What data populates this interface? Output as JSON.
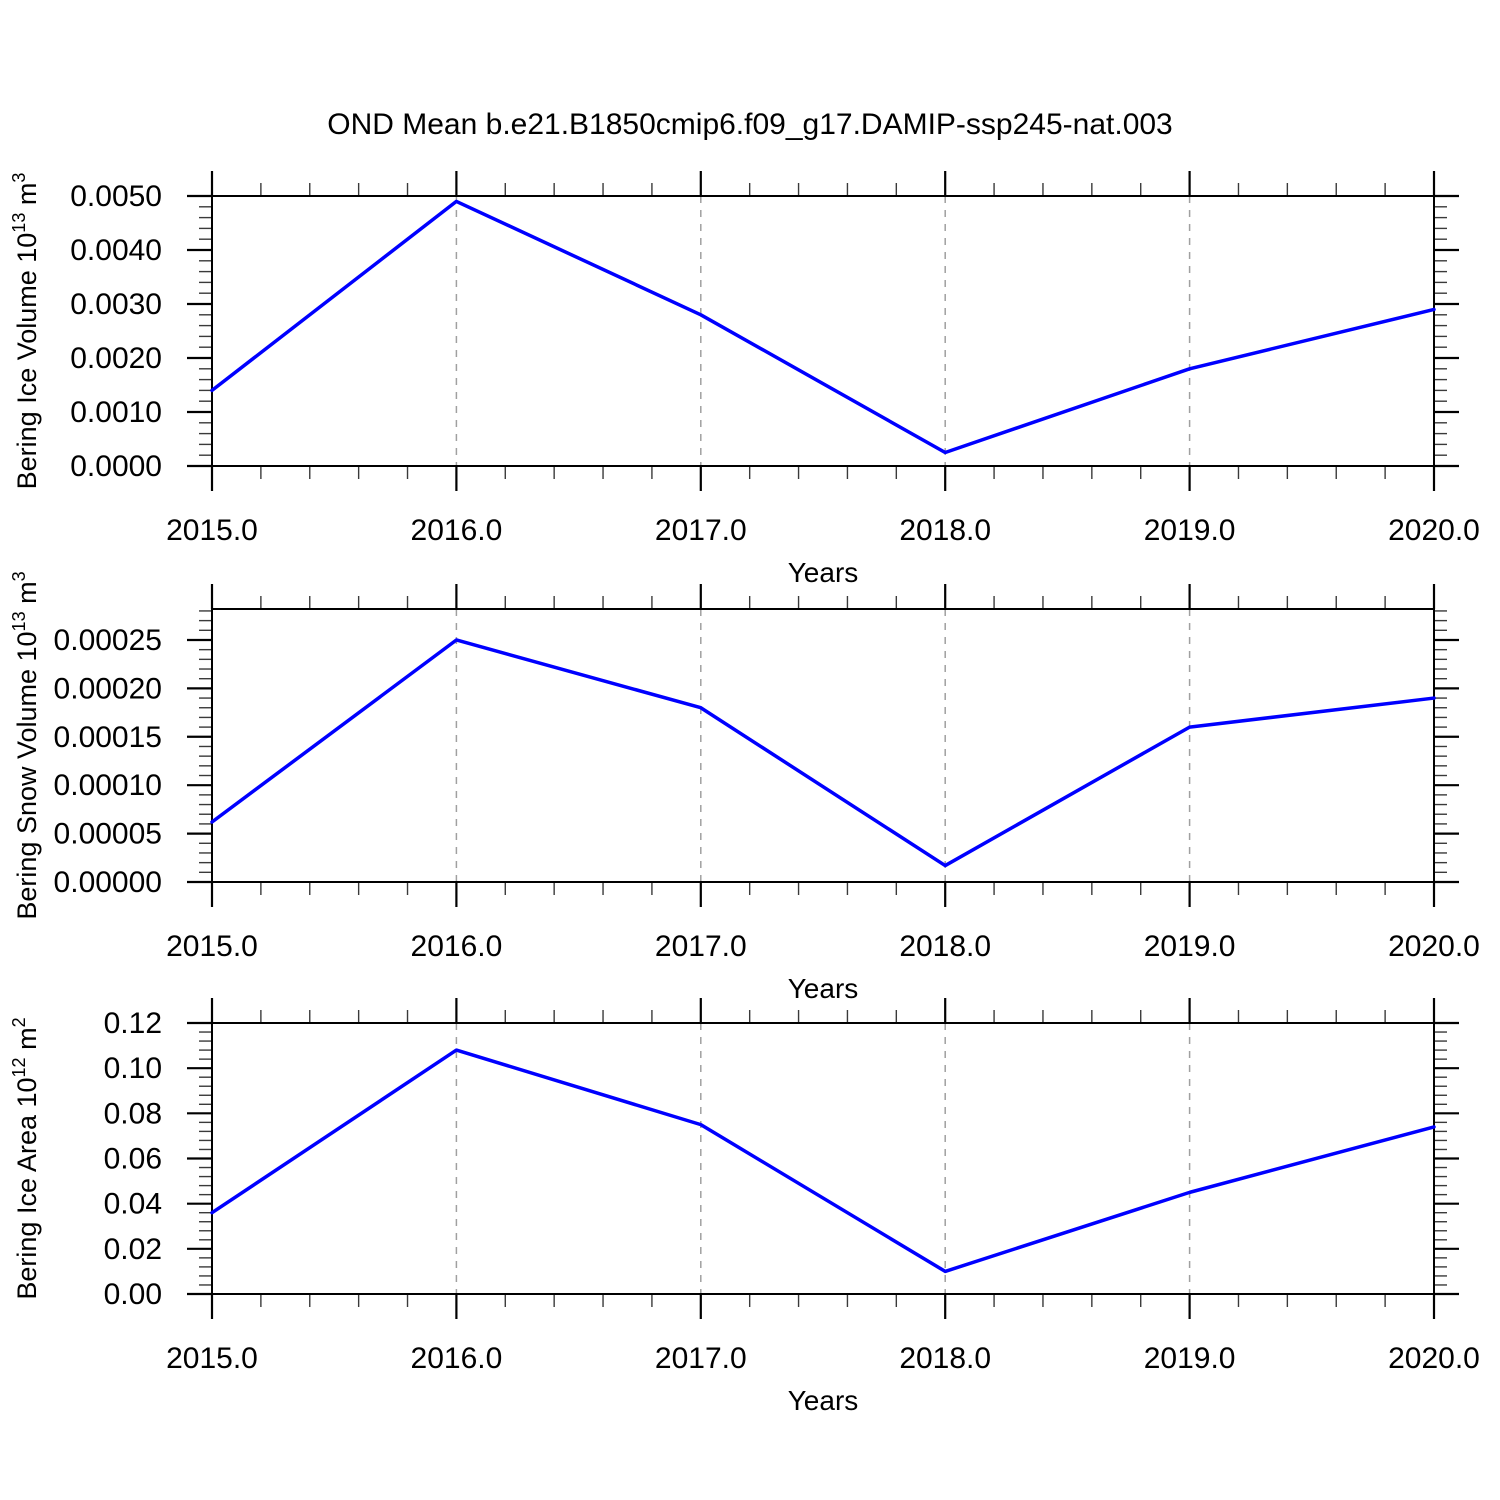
{
  "title": "OND Mean b.e21.B1850cmip6.f09_g17.DAMIP-ssp245-nat.003",
  "colors": {
    "line": "#0000ff",
    "axis": "#000000",
    "minor_tick": "#3a3a3a",
    "grid": "#a0a0a0",
    "background": "#ffffff",
    "text": "#000000"
  },
  "chart_data": [
    {
      "id": "bering-ice-volume",
      "type": "line",
      "x": [
        2015.0,
        2016.0,
        2017.0,
        2018.0,
        2019.0,
        2020.0
      ],
      "values": [
        0.0014,
        0.0049,
        0.0028,
        0.00025,
        0.0018,
        0.0029
      ],
      "x_tick_labels": [
        "2015.0",
        "2016.0",
        "2017.0",
        "2018.0",
        "2019.0",
        "2020.0"
      ],
      "xlabel": "Years",
      "ylabel": "Bering Ice Volume 10¹³ m³",
      "ylabel_parts": [
        {
          "text": "Bering Ice Volume 10",
          "sup": false
        },
        {
          "text": "13",
          "sup": true
        },
        {
          "text": " m",
          "sup": false
        },
        {
          "text": "3",
          "sup": true
        }
      ],
      "ytick_values": [
        0.0,
        0.001,
        0.002,
        0.003,
        0.004,
        0.005
      ],
      "ytick_labels": [
        "0.0000",
        "0.0010",
        "0.0020",
        "0.0030",
        "0.0040",
        "0.0050"
      ],
      "y_minor_step": 0.0002,
      "x_minor_step": 0.2,
      "xlim": [
        2015.0,
        2020.0
      ],
      "ylim": [
        0.0,
        0.005
      ],
      "grid_x": [
        2016.0,
        2017.0,
        2018.0,
        2019.0
      ],
      "grid_style": "dashed",
      "legend": null
    },
    {
      "id": "bering-snow-volume",
      "type": "line",
      "x": [
        2015.0,
        2016.0,
        2017.0,
        2018.0,
        2019.0,
        2020.0
      ],
      "values": [
        6.2e-05,
        0.00025,
        0.00018,
        1.7e-05,
        0.00016,
        0.00019
      ],
      "x_tick_labels": [
        "2015.0",
        "2016.0",
        "2017.0",
        "2018.0",
        "2019.0",
        "2020.0"
      ],
      "xlabel": "Years",
      "ylabel": "Bering Snow Volume 10¹³ m³",
      "ylabel_parts": [
        {
          "text": "Bering Snow Volume 10",
          "sup": false
        },
        {
          "text": "13",
          "sup": true
        },
        {
          "text": " m",
          "sup": false
        },
        {
          "text": "3",
          "sup": true
        }
      ],
      "ytick_values": [
        0.0,
        5e-05,
        0.0001,
        0.00015,
        0.0002,
        0.00025
      ],
      "ytick_labels": [
        "0.00000",
        "0.00005",
        "0.00010",
        "0.00015",
        "0.00020",
        "0.00025"
      ],
      "y_minor_step": 1e-05,
      "x_minor_step": 0.2,
      "xlim": [
        2015.0,
        2020.0
      ],
      "ylim": [
        0.0,
        0.000282
      ],
      "grid_x": [
        2016.0,
        2017.0,
        2018.0,
        2019.0
      ],
      "grid_style": "dashed",
      "legend": null
    },
    {
      "id": "bering-ice-area",
      "type": "line",
      "x": [
        2015.0,
        2016.0,
        2017.0,
        2018.0,
        2019.0,
        2020.0
      ],
      "values": [
        0.036,
        0.108,
        0.075,
        0.01,
        0.045,
        0.074
      ],
      "x_tick_labels": [
        "2015.0",
        "2016.0",
        "2017.0",
        "2018.0",
        "2019.0",
        "2020.0"
      ],
      "xlabel": "Years",
      "ylabel": "Bering Ice Area 10¹² m²",
      "ylabel_parts": [
        {
          "text": "Bering Ice Area 10",
          "sup": false
        },
        {
          "text": "12",
          "sup": true
        },
        {
          "text": " m",
          "sup": false
        },
        {
          "text": "2",
          "sup": true
        }
      ],
      "ytick_values": [
        0.0,
        0.02,
        0.04,
        0.06,
        0.08,
        0.1,
        0.12
      ],
      "ytick_labels": [
        "0.00",
        "0.02",
        "0.04",
        "0.06",
        "0.08",
        "0.10",
        "0.12"
      ],
      "y_minor_step": 0.004,
      "x_minor_step": 0.2,
      "xlim": [
        2015.0,
        2020.0
      ],
      "ylim": [
        0.0,
        0.12
      ],
      "grid_x": [
        2016.0,
        2017.0,
        2018.0,
        2019.0
      ],
      "grid_style": "dashed",
      "legend": null
    }
  ]
}
